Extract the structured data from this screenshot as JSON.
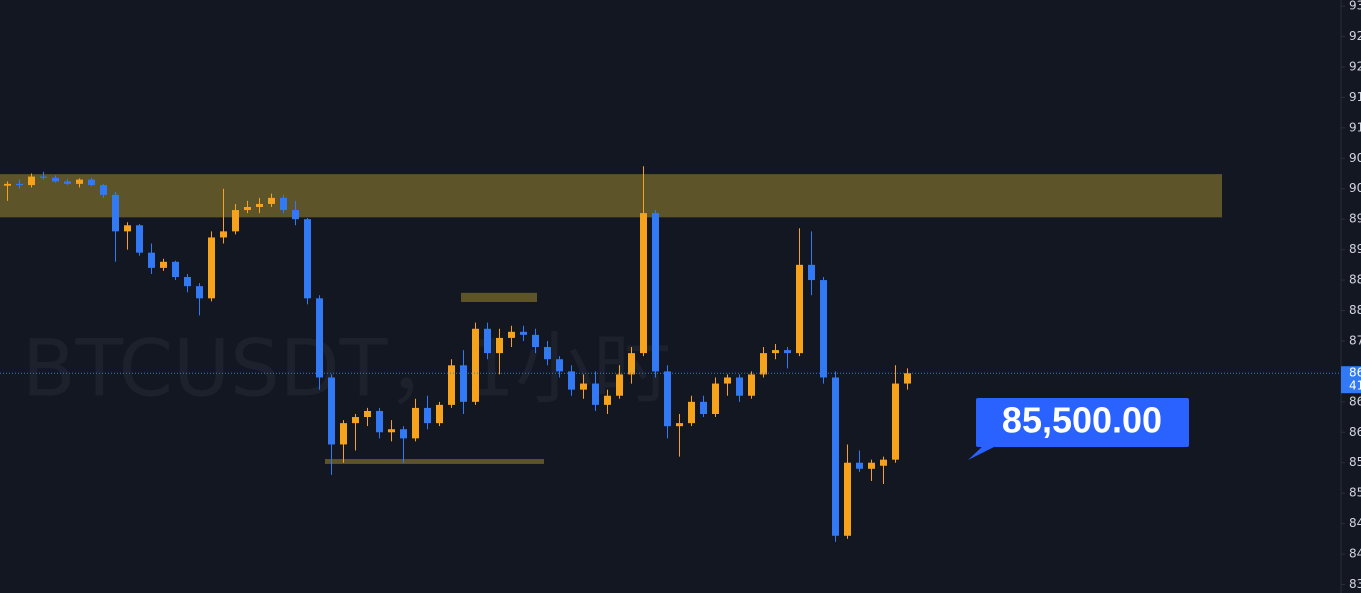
{
  "chart_data": {
    "type": "candlestick",
    "watermark": "BTCUSDT，1小时",
    "up_color": "#f7a21b",
    "down_color": "#3179f5",
    "open": [
      90050,
      90080,
      90060,
      90200,
      90180,
      90120,
      90080,
      90150,
      90060,
      89900,
      89300,
      89400,
      88950,
      88700,
      88800,
      88550,
      88400,
      88200,
      89200,
      89300,
      89650,
      89700,
      89750,
      89850,
      89650,
      89500,
      88200,
      86900,
      85800,
      86150,
      86250,
      86350,
      86000,
      86050,
      85900,
      86400,
      86150,
      86450,
      87100,
      86500,
      87700,
      87300,
      87550,
      87650,
      87600,
      87400,
      87200,
      87000,
      86700,
      86800,
      86450,
      86600,
      86950,
      87300,
      89600,
      87000,
      86100,
      86150,
      86500,
      86300,
      86800,
      86900,
      86600,
      86950,
      87300,
      87350,
      87300,
      88750,
      88500,
      86900,
      84300,
      85500,
      85400,
      85450,
      85550,
      86800
    ],
    "high": [
      90120,
      90150,
      90250,
      90280,
      90220,
      90160,
      90170,
      90180,
      90080,
      89950,
      89450,
      89420,
      89100,
      88850,
      88820,
      88600,
      88450,
      89300,
      90000,
      89750,
      89800,
      89850,
      89920,
      89900,
      89800,
      89520,
      88250,
      86950,
      86200,
      86300,
      86400,
      86400,
      86200,
      86100,
      86550,
      86600,
      86500,
      87200,
      87350,
      87800,
      87800,
      87700,
      87750,
      87750,
      87700,
      87500,
      87250,
      87100,
      86950,
      87000,
      86700,
      87100,
      87400,
      90370,
      89650,
      87100,
      86300,
      86600,
      86600,
      86900,
      86950,
      86950,
      87000,
      87400,
      87450,
      87400,
      89350,
      89300,
      88550,
      87000,
      85800,
      85700,
      85550,
      85600,
      87100,
      87050
    ],
    "low": [
      89800,
      90000,
      90020,
      90150,
      90100,
      90060,
      90020,
      90040,
      89850,
      88800,
      89000,
      88900,
      88600,
      88650,
      88500,
      88300,
      87920,
      88150,
      89100,
      89250,
      89600,
      89600,
      89700,
      89600,
      89400,
      88100,
      86700,
      85300,
      85500,
      85700,
      86100,
      85900,
      85850,
      85500,
      85850,
      86050,
      86100,
      86400,
      86300,
      86450,
      87200,
      86950,
      87400,
      87500,
      87300,
      87100,
      86900,
      86600,
      86550,
      86350,
      86300,
      86550,
      86800,
      87250,
      86900,
      85900,
      85600,
      86100,
      86250,
      86250,
      86600,
      86500,
      86550,
      86900,
      87200,
      87050,
      87250,
      88250,
      86800,
      84200,
      84250,
      85350,
      85200,
      85150,
      85500,
      86700
    ],
    "close": [
      90080,
      90060,
      90200,
      90180,
      90120,
      90080,
      90150,
      90060,
      89900,
      89300,
      89400,
      88950,
      88700,
      88800,
      88550,
      88400,
      88200,
      89200,
      89300,
      89650,
      89700,
      89750,
      89850,
      89650,
      89500,
      88200,
      86900,
      85800,
      86150,
      86250,
      86350,
      86000,
      86050,
      85900,
      86400,
      86150,
      86450,
      87100,
      86500,
      87700,
      87300,
      87550,
      87650,
      87600,
      87400,
      87200,
      87000,
      86700,
      86800,
      86450,
      86600,
      86950,
      87300,
      89600,
      87000,
      86100,
      86150,
      86500,
      86300,
      86800,
      86900,
      86600,
      86950,
      87300,
      87350,
      87300,
      88750,
      88500,
      86900,
      84300,
      85500,
      85400,
      85500,
      85550,
      86800,
      86970
    ],
    "zones": [
      {
        "ylim": [
          89530,
          90240
        ],
        "color": "#6b5f2a"
      },
      {
        "ylim": [
          88140,
          88290
        ],
        "color": "#6b5f2a"
      },
      {
        "ylim": [
          85480,
          85560
        ],
        "color": "#6b5f2a"
      }
    ],
    "annotation": {
      "text": "85,500.00",
      "color": "#2962ff"
    },
    "last_price": {
      "value": 86970,
      "label": "86",
      "countdown": "41"
    },
    "ylim": [
      83360,
      93100
    ],
    "yticks": [
      {
        "value": 93000,
        "label": "93"
      },
      {
        "value": 92500,
        "label": "92"
      },
      {
        "value": 92000,
        "label": "92"
      },
      {
        "value": 91500,
        "label": "91"
      },
      {
        "value": 91000,
        "label": "91"
      },
      {
        "value": 90500,
        "label": "90"
      },
      {
        "value": 90000,
        "label": "90"
      },
      {
        "value": 89500,
        "label": "89"
      },
      {
        "value": 89000,
        "label": "89"
      },
      {
        "value": 88500,
        "label": "88"
      },
      {
        "value": 88000,
        "label": "88"
      },
      {
        "value": 87500,
        "label": "87"
      },
      {
        "value": 86500,
        "label": "86"
      },
      {
        "value": 86000,
        "label": "86"
      },
      {
        "value": 85500,
        "label": "85"
      },
      {
        "value": 85000,
        "label": "85"
      },
      {
        "value": 84500,
        "label": "84"
      },
      {
        "value": 84000,
        "label": "84"
      },
      {
        "value": 83500,
        "label": "83"
      }
    ],
    "grid": false
  }
}
